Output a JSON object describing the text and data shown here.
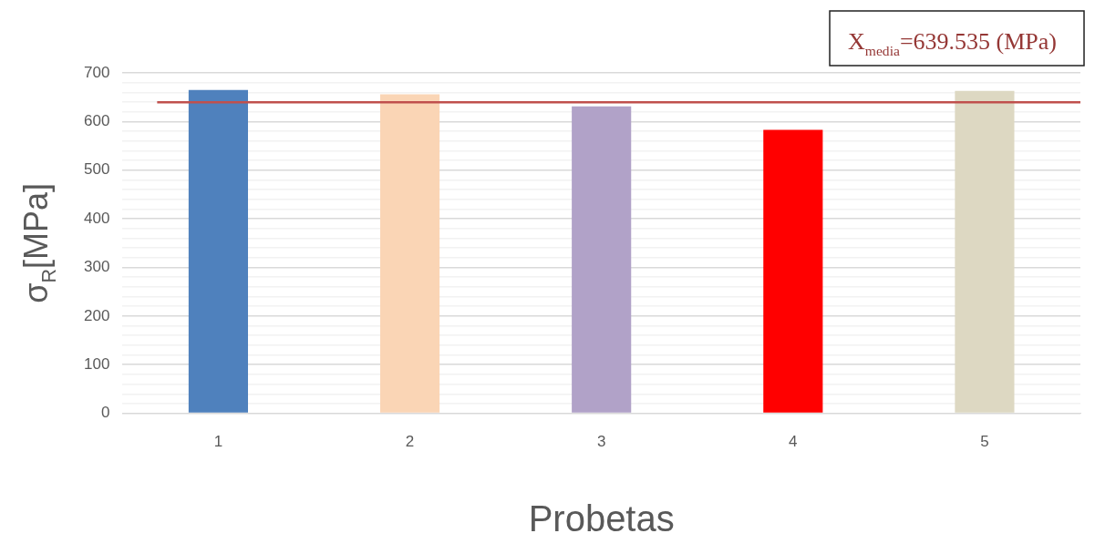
{
  "chart_data": {
    "type": "bar",
    "xlabel": "Probetas",
    "ylabel": "σ$_{R}$[MPa]",
    "categories": [
      "1",
      "2",
      "3",
      "4",
      "5"
    ],
    "values": [
      665,
      656,
      631,
      583,
      663
    ],
    "colors": [
      "#4f81bd",
      "#fad5b5",
      "#b1a2c8",
      "#ff0000",
      "#ddd8c2"
    ],
    "ylim": [
      0,
      700
    ],
    "yticks": [
      0,
      {
        "value": 20,
        "label": null
      },
      {
        "value": 40,
        "label": null
      },
      {
        "value": 60,
        "label": null
      },
      {
        "value": 80,
        "label": null
      },
      100,
      {
        "value": 120,
        "label": null
      },
      {
        "value": 140,
        "label": null
      },
      {
        "value": 160,
        "label": null
      },
      {
        "value": 180,
        "label": null
      },
      200,
      {
        "value": 220,
        "label": null
      },
      {
        "value": 240,
        "label": null
      },
      {
        "value": 260,
        "label": null
      },
      {
        "value": 280,
        "label": null
      },
      300,
      {
        "value": 320,
        "label": null
      },
      {
        "value": 340,
        "label": null
      },
      {
        "value": 360,
        "label": null
      },
      {
        "value": 380,
        "label": null
      },
      400,
      {
        "value": 420,
        "label": null
      },
      {
        "value": 440,
        "label": null
      },
      {
        "value": 460,
        "label": null
      },
      {
        "value": 480,
        "label": null
      },
      500,
      {
        "value": 520,
        "label": null
      },
      {
        "value": 540,
        "label": null
      },
      {
        "value": 560,
        "label": null
      },
      {
        "value": 580,
        "label": null
      },
      600,
      {
        "value": 620,
        "label": null
      },
      {
        "value": 640,
        "label": null
      },
      {
        "value": 660,
        "label": null
      },
      {
        "value": 680,
        "label": null
      },
      700
    ],
    "grid": "y",
    "legend": false,
    "ref_lines": [
      {
        "axis": "y",
        "value": 639.535,
        "label": "X$_{media}$=639.535 (MPa)",
        "color": "#c0504d"
      }
    ]
  }
}
